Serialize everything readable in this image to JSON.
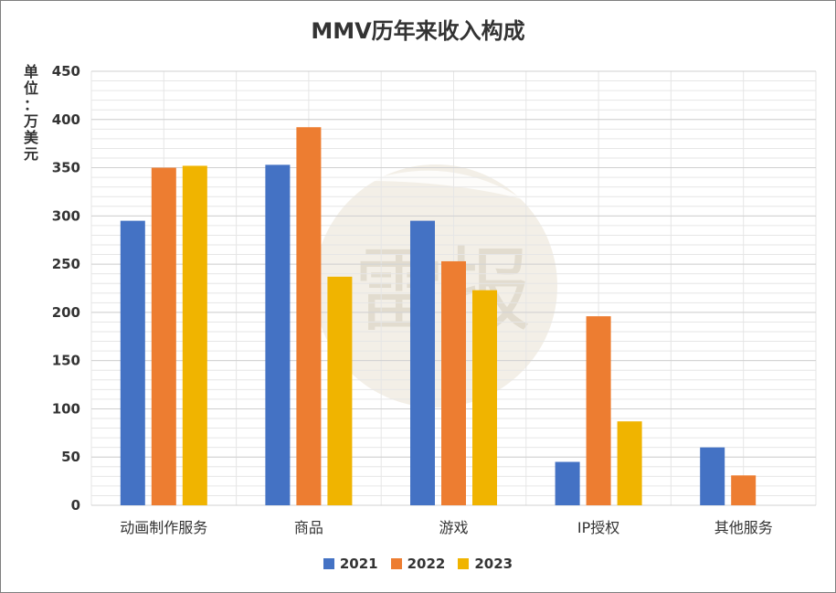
{
  "chart_data": {
    "type": "bar",
    "title": "MMV历年来收入构成",
    "ylabel": "单位：万美元",
    "xlabel": "",
    "ylim": [
      0,
      450
    ],
    "yticks": [
      0,
      50,
      100,
      150,
      200,
      250,
      300,
      350,
      400,
      450
    ],
    "categories": [
      "动画制作服务",
      "商品",
      "游戏",
      "IP授权",
      "其他服务"
    ],
    "series": [
      {
        "name": "2021",
        "color": "#4472c4",
        "values": [
          295,
          353,
          295,
          45,
          60
        ]
      },
      {
        "name": "2022",
        "color": "#ed7d31",
        "values": [
          350,
          392,
          253,
          196,
          31
        ]
      },
      {
        "name": "2023",
        "color": "#f0b400",
        "values": [
          352,
          237,
          223,
          87,
          null
        ]
      }
    ],
    "grid": true,
    "legend_position": "bottom"
  },
  "watermark": {
    "text": "雷报"
  }
}
